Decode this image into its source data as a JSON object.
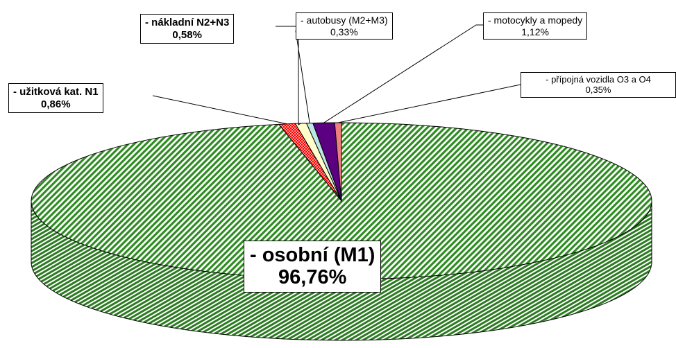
{
  "chart_data": {
    "type": "pie",
    "style": "3d",
    "categories": [
      "- osobní (M1)",
      "- užitková kat. N1",
      "- nákladní N2+N3",
      "- autobusy (M2+M3)",
      "- motocykly a mopedy",
      "- přípojná vozidla O3 a O4"
    ],
    "values": [
      96.76,
      0.86,
      0.58,
      0.33,
      1.12,
      0.35
    ],
    "value_labels": [
      "96,76%",
      "0,86%",
      "0,58%",
      "0,33%",
      "1,12%",
      "0,35%"
    ],
    "colors": [
      "#2e8b22",
      "#ff0000",
      "#ffffcc",
      "#bfe6e6",
      "#5a0080",
      "#f08080"
    ],
    "fill_patterns": [
      "diagonal-stripes",
      "dots",
      "solid",
      "solid",
      "solid",
      "solid"
    ],
    "legend": "none"
  }
}
